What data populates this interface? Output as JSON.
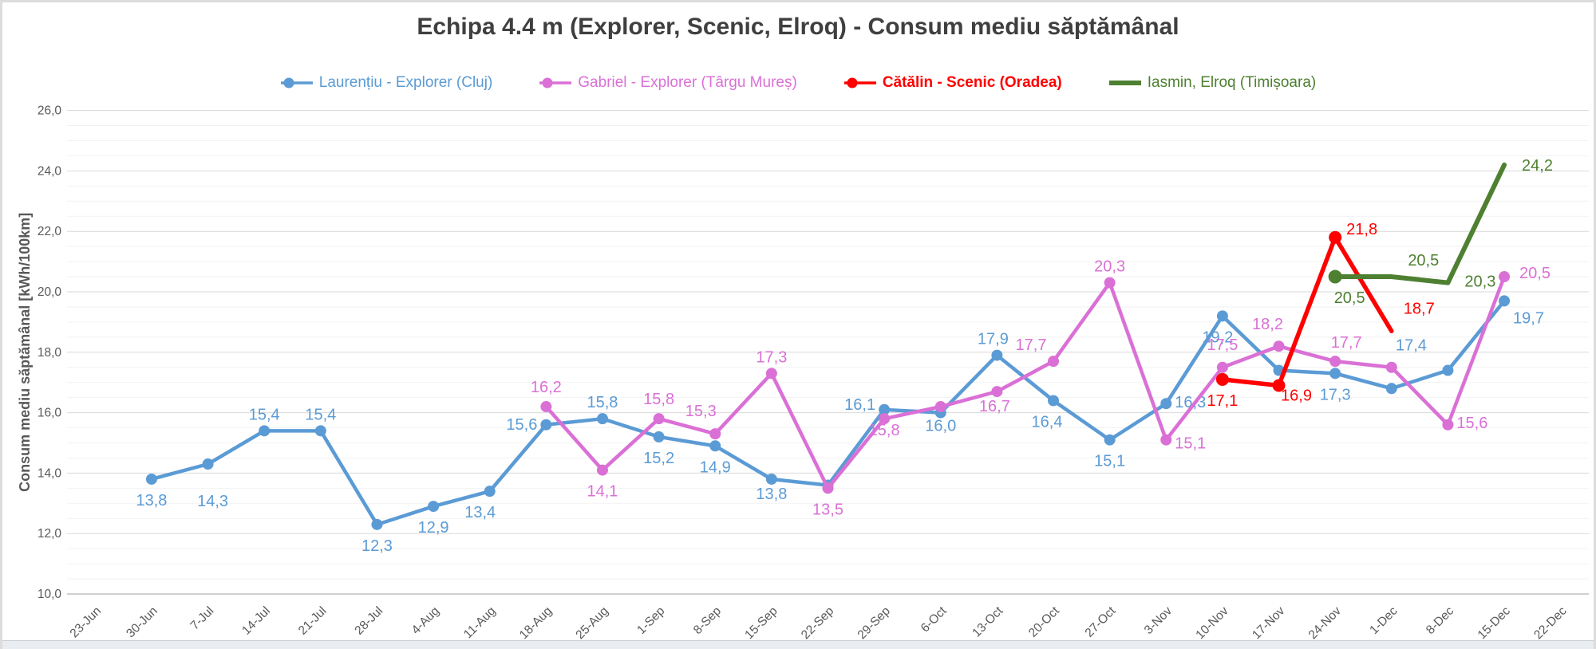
{
  "window": {
    "bottom_edge": true
  },
  "chart_data": {
    "type": "line",
    "title": "Echipa 4.4 m (Explorer, Scenic, Elroq) - Consum mediu săptămânal",
    "ylabel": "Consum mediu săptămânal [kWh/100km]",
    "x_axis": {
      "tick_rotation_deg": -45
    },
    "y_axis": {
      "min": 10,
      "max": 26,
      "major_step": 2,
      "minor_step": 0.5,
      "tick_labels": [
        "26,0",
        "24,0",
        "22,0",
        "20,0",
        "18,0",
        "16,0",
        "14,0",
        "12,0",
        "10,0"
      ]
    },
    "grid": {
      "major_color": "#d9d9d9",
      "minor_color": "#f2f2f2",
      "axis_color": "#bfbfbf"
    },
    "text_color": "#595959",
    "title_color": "#3f3f3f",
    "legend_position": "top",
    "categories": [
      "23-Jun",
      "30-Jun",
      "7-Jul",
      "14-Jul",
      "21-Jul",
      "28-Jul",
      "4-Aug",
      "11-Aug",
      "18-Aug",
      "25-Aug",
      "1-Sep",
      "8-Sep",
      "15-Sep",
      "22-Sep",
      "29-Sep",
      "6-Oct",
      "13-Oct",
      "20-Oct",
      "27-Oct",
      "3-Nov",
      "10-Nov",
      "17-Nov",
      "24-Nov",
      "1-Dec",
      "8-Dec",
      "15-Dec",
      "22-Dec"
    ],
    "series": [
      {
        "name": "Laurențiu - Explorer (Cluj)",
        "color": "#5B9BD5",
        "bold_legend": false,
        "legend_marker": "dot-line",
        "line_width": 4.5,
        "marker": "all",
        "marker_r": 7,
        "start_index": 1,
        "values": [
          13.8,
          14.3,
          15.4,
          15.4,
          12.3,
          12.9,
          13.4,
          15.6,
          15.8,
          15.2,
          14.9,
          13.8,
          13.6,
          16.1,
          16.0,
          17.9,
          16.4,
          15.1,
          16.3,
          19.2,
          17.4,
          17.3,
          16.8,
          17.4,
          19.7
        ],
        "labels": [
          {
            "t": "13,8",
            "p": "below"
          },
          {
            "t": "14,3",
            "p": "below",
            "dx": 6,
            "dy": 20
          },
          {
            "t": "15,4",
            "p": "above"
          },
          {
            "t": "15,4",
            "p": "above"
          },
          {
            "t": "12,3",
            "p": "below"
          },
          {
            "t": "12,9",
            "p": "below"
          },
          {
            "t": "13,4",
            "p": "below",
            "dx": -12
          },
          {
            "t": "15,6",
            "p": "left"
          },
          {
            "t": "15,8",
            "p": "above"
          },
          {
            "t": "15,2",
            "p": "below"
          },
          {
            "t": "14,9",
            "p": "below"
          },
          {
            "t": "13,8",
            "p": "below",
            "dy": -8
          },
          null,
          {
            "t": "16,1",
            "p": "left",
            "dy": -6
          },
          {
            "t": "16,0",
            "p": "below",
            "dy": -10
          },
          {
            "t": "17,9",
            "p": "above",
            "dx": -5
          },
          {
            "t": "16,4",
            "p": "below",
            "dx": -8
          },
          {
            "t": "15,1",
            "p": "below"
          },
          {
            "t": "16,3",
            "p": "right",
            "dy": -2
          },
          {
            "t": "19,2",
            "p": "below",
            "dx": -6
          },
          null,
          {
            "t": "17,3",
            "p": "below"
          },
          null,
          {
            "t": "17,4",
            "p": "above",
            "dx": -46,
            "dy": -11
          },
          {
            "t": "19,7",
            "p": "right",
            "dy": 21
          }
        ]
      },
      {
        "name": "Gabriel - Explorer (Târgu Mureș)",
        "color": "#DA70D6",
        "bold_legend": false,
        "legend_marker": "dot-line",
        "line_width": 4.5,
        "marker": "all",
        "marker_r": 7,
        "start_index": 8,
        "values": [
          16.2,
          14.1,
          15.8,
          15.3,
          17.3,
          13.5,
          15.8,
          16.2,
          16.7,
          17.7,
          20.3,
          15.1,
          17.5,
          18.2,
          17.7,
          17.5,
          15.6,
          20.5
        ],
        "labels": [
          {
            "t": "16,2",
            "p": "above",
            "dy": -4
          },
          {
            "t": "14,1",
            "p": "below"
          },
          {
            "t": "15,8",
            "p": "above",
            "dy": -4
          },
          {
            "t": "15,3",
            "p": "above",
            "dx": -18,
            "dy": -8
          },
          {
            "t": "17,3",
            "p": "above"
          },
          {
            "t": "13,5",
            "p": "below"
          },
          {
            "t": "15,8",
            "p": "below",
            "dy": -12
          },
          null,
          {
            "t": "16,7",
            "p": "below",
            "dx": -3,
            "dy": -8
          },
          {
            "t": "17,7",
            "p": "above",
            "dx": -28
          },
          {
            "t": "20,3",
            "p": "above"
          },
          {
            "t": "15,1",
            "p": "right",
            "dy": 4
          },
          {
            "t": "17,5",
            "p": "above",
            "dy": -8
          },
          {
            "t": "18,2",
            "p": "above",
            "dx": -14,
            "dy": -7
          },
          {
            "t": "17,7",
            "p": "above",
            "dx": 14,
            "dy": -3
          },
          null,
          {
            "t": "15,6",
            "p": "right",
            "dy": -3
          },
          {
            "t": "20,5",
            "p": "right",
            "dx": 8,
            "dy": -5
          }
        ]
      },
      {
        "name": "Cătălin - Scenic (Oradea)",
        "color": "#FF0000",
        "bold_legend": true,
        "legend_marker": "dot-line",
        "line_width": 5.5,
        "marker": "except-last",
        "marker_r": 8,
        "start_index": 20,
        "values": [
          17.1,
          16.9,
          21.8,
          18.7
        ],
        "labels": [
          {
            "t": "17,1",
            "p": "below"
          },
          {
            "t": "16,9",
            "p": "below",
            "dx": 22,
            "dy": -14
          },
          {
            "t": "21,8",
            "p": "right",
            "dx": 3,
            "dy": -11
          },
          {
            "t": "18,7",
            "p": "right",
            "dx": 4,
            "dy": -29
          }
        ]
      },
      {
        "name": "Iasmin, Elroq (Timișoara)",
        "color": "#4E8031",
        "bold_legend": false,
        "legend_marker": "line",
        "line_width": 6,
        "marker": "first",
        "marker_r": 8.5,
        "start_index": 22,
        "values": [
          20.5,
          20.5,
          20.3,
          24.2
        ],
        "labels": [
          {
            "t": "20,5",
            "p": "below",
            "dx": 18
          },
          {
            "t": "20,5",
            "p": "above",
            "dx": 40
          },
          {
            "t": "20,3",
            "p": "right",
            "dx": 10,
            "dy": -2
          },
          {
            "t": "24,2",
            "p": "right",
            "dx": 11
          }
        ]
      }
    ]
  }
}
